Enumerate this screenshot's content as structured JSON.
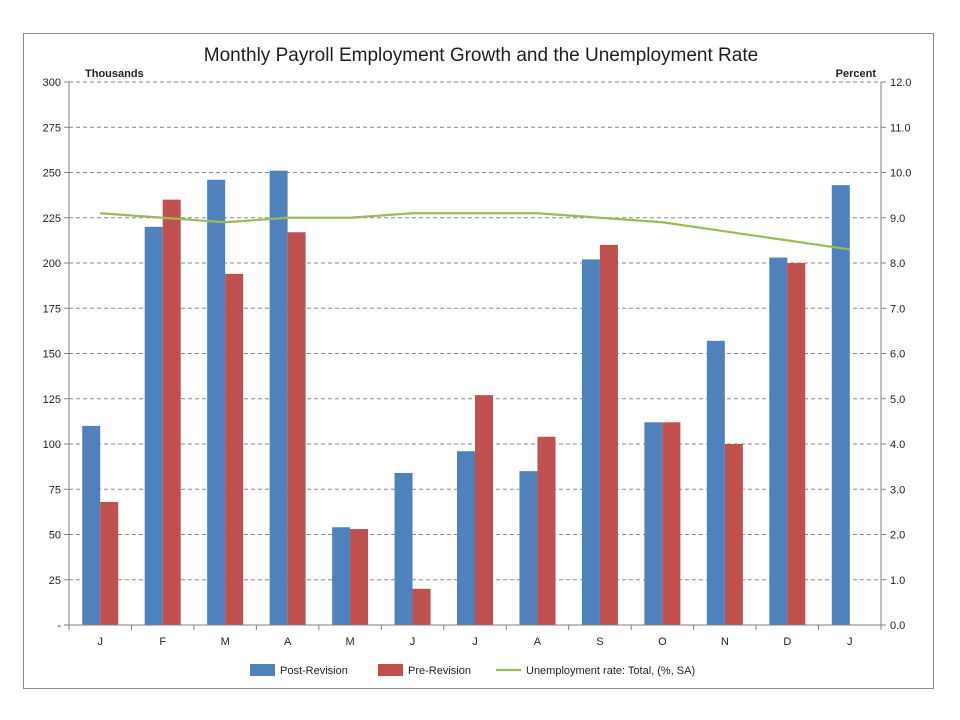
{
  "chart_data": {
    "type": "bar",
    "title": "Monthly Payroll Employment Growth and the Unemployment Rate",
    "ylabel": "Thousands",
    "y2label": "Percent",
    "categories": [
      "J",
      "F",
      "M",
      "A",
      "M",
      "J",
      "J",
      "A",
      "S",
      "O",
      "N",
      "D",
      "J"
    ],
    "ylim": [
      0,
      300
    ],
    "y_ticks": [
      "-",
      "25",
      "50",
      "75",
      "100",
      "125",
      "150",
      "175",
      "200",
      "225",
      "250",
      "275",
      "300"
    ],
    "y2lim": [
      0,
      12
    ],
    "y2_ticks": [
      "0.0",
      "1.0",
      "2.0",
      "3.0",
      "4.0",
      "5.0",
      "6.0",
      "7.0",
      "8.0",
      "9.0",
      "10.0",
      "11.0",
      "12.0"
    ],
    "grid": true,
    "legend_position": "bottom",
    "series": [
      {
        "name": "Post-Revision",
        "type": "bar",
        "axis": "left",
        "color": "#4f81bd",
        "values": [
          110,
          220,
          246,
          251,
          54,
          84,
          96,
          85,
          202,
          112,
          157,
          203,
          243
        ]
      },
      {
        "name": "Pre-Revision",
        "type": "bar",
        "axis": "left",
        "color": "#c0504d",
        "values": [
          68,
          235,
          194,
          217,
          53,
          20,
          127,
          104,
          210,
          112,
          100,
          200,
          null
        ]
      },
      {
        "name": "Unemployment rate: Total, (%, SA)",
        "type": "line",
        "axis": "right",
        "color": "#9bbb59",
        "values": [
          9.1,
          9.0,
          8.9,
          9.0,
          9.0,
          9.1,
          9.1,
          9.1,
          9.0,
          8.9,
          8.7,
          8.5,
          8.3
        ]
      }
    ]
  }
}
